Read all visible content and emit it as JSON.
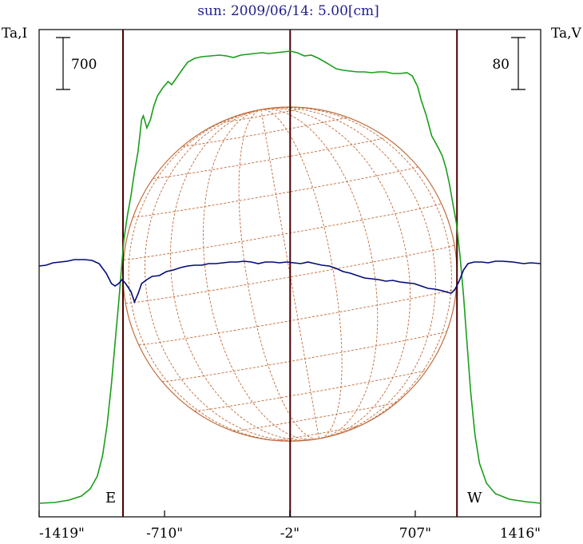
{
  "chart_data": {
    "type": "line",
    "title": "sun: 2009/06/14: 5.00[cm]",
    "title_color": "#1f1f8f",
    "left_axis_label": "Ta,I",
    "right_axis_label": "Ta,V",
    "left_scale_bar": "700",
    "right_scale_bar": "80",
    "x_ticks": [
      "-1419\"",
      "-710\"",
      "-2\"",
      "707\"",
      "1416\""
    ],
    "xlim": [
      -1419,
      1416
    ],
    "limb_labels": {
      "east": "E",
      "west": "W"
    },
    "limb_x": [
      -945,
      943
    ],
    "grid": false,
    "disk_overlay": true,
    "colors": {
      "stokes_i": "#1a9e1a",
      "stokes_v": "#000a78",
      "limb_lines": "#4a0000",
      "disk": "#c06b3a"
    },
    "series": [
      {
        "key": "stokes_i",
        "axis": "left",
        "points": [
          [
            -1419,
            630
          ],
          [
            -1330,
            629
          ],
          [
            -1250,
            626
          ],
          [
            -1180,
            621
          ],
          [
            -1130,
            612
          ],
          [
            -1090,
            596
          ],
          [
            -1060,
            570
          ],
          [
            -1035,
            532
          ],
          [
            -1010,
            480
          ],
          [
            -990,
            430
          ],
          [
            -970,
            380
          ],
          [
            -955,
            340
          ],
          [
            -940,
            300
          ],
          [
            -920,
            270
          ],
          [
            -900,
            245
          ],
          [
            -880,
            215
          ],
          [
            -860,
            190
          ],
          [
            -840,
            150
          ],
          [
            -830,
            145
          ],
          [
            -810,
            160
          ],
          [
            -790,
            150
          ],
          [
            -770,
            132
          ],
          [
            -750,
            120
          ],
          [
            -720,
            110
          ],
          [
            -690,
            102
          ],
          [
            -670,
            106
          ],
          [
            -650,
            100
          ],
          [
            -610,
            87
          ],
          [
            -580,
            78
          ],
          [
            -540,
            73
          ],
          [
            -500,
            71
          ],
          [
            -450,
            70
          ],
          [
            -400,
            69
          ],
          [
            -360,
            70
          ],
          [
            -320,
            72
          ],
          [
            -280,
            69
          ],
          [
            -240,
            68
          ],
          [
            -200,
            67
          ],
          [
            -160,
            66
          ],
          [
            -120,
            67
          ],
          [
            -80,
            66
          ],
          [
            -40,
            65
          ],
          [
            0,
            64
          ],
          [
            40,
            66
          ],
          [
            80,
            70
          ],
          [
            120,
            69
          ],
          [
            160,
            73
          ],
          [
            200,
            78
          ],
          [
            230,
            82
          ],
          [
            260,
            86
          ],
          [
            300,
            88
          ],
          [
            340,
            89
          ],
          [
            380,
            90
          ],
          [
            420,
            90
          ],
          [
            460,
            91
          ],
          [
            500,
            90
          ],
          [
            540,
            90
          ],
          [
            580,
            92
          ],
          [
            620,
            92
          ],
          [
            660,
            91
          ],
          [
            690,
            95
          ],
          [
            720,
            108
          ],
          [
            740,
            125
          ],
          [
            770,
            145
          ],
          [
            800,
            170
          ],
          [
            830,
            182
          ],
          [
            860,
            195
          ],
          [
            880,
            210
          ],
          [
            900,
            230
          ],
          [
            920,
            255
          ],
          [
            940,
            280
          ],
          [
            960,
            320
          ],
          [
            980,
            370
          ],
          [
            1000,
            430
          ],
          [
            1020,
            490
          ],
          [
            1045,
            545
          ],
          [
            1070,
            580
          ],
          [
            1110,
            605
          ],
          [
            1160,
            618
          ],
          [
            1240,
            625
          ],
          [
            1330,
            628
          ],
          [
            1416,
            630
          ]
        ]
      },
      {
        "key": "stokes_v",
        "axis": "right",
        "points": [
          [
            -1419,
            333
          ],
          [
            -1380,
            332
          ],
          [
            -1340,
            329
          ],
          [
            -1300,
            328
          ],
          [
            -1260,
            327
          ],
          [
            -1220,
            325
          ],
          [
            -1160,
            325
          ],
          [
            -1120,
            326
          ],
          [
            -1080,
            330
          ],
          [
            -1040,
            342
          ],
          [
            -1010,
            355
          ],
          [
            -990,
            358
          ],
          [
            -970,
            355
          ],
          [
            -950,
            350
          ],
          [
            -930,
            355
          ],
          [
            -900,
            365
          ],
          [
            -880,
            378
          ],
          [
            -860,
            368
          ],
          [
            -840,
            355
          ],
          [
            -810,
            350
          ],
          [
            -780,
            346
          ],
          [
            -740,
            345
          ],
          [
            -700,
            340
          ],
          [
            -660,
            338
          ],
          [
            -620,
            335
          ],
          [
            -580,
            333
          ],
          [
            -540,
            332
          ],
          [
            -500,
            332
          ],
          [
            -460,
            330
          ],
          [
            -420,
            330
          ],
          [
            -380,
            329
          ],
          [
            -340,
            328
          ],
          [
            -300,
            328
          ],
          [
            -260,
            327
          ],
          [
            -220,
            328
          ],
          [
            -180,
            330
          ],
          [
            -140,
            328
          ],
          [
            -100,
            328
          ],
          [
            -60,
            329
          ],
          [
            -20,
            328
          ],
          [
            20,
            329
          ],
          [
            60,
            330
          ],
          [
            100,
            328
          ],
          [
            140,
            330
          ],
          [
            180,
            332
          ],
          [
            220,
            333
          ],
          [
            260,
            336
          ],
          [
            300,
            340
          ],
          [
            340,
            342
          ],
          [
            380,
            345
          ],
          [
            420,
            348
          ],
          [
            460,
            349
          ],
          [
            500,
            350
          ],
          [
            540,
            352
          ],
          [
            580,
            351
          ],
          [
            620,
            353
          ],
          [
            660,
            354
          ],
          [
            700,
            355
          ],
          [
            740,
            358
          ],
          [
            780,
            361
          ],
          [
            820,
            362
          ],
          [
            860,
            364
          ],
          [
            890,
            366
          ],
          [
            910,
            367
          ],
          [
            930,
            363
          ],
          [
            955,
            352
          ],
          [
            980,
            338
          ],
          [
            1005,
            330
          ],
          [
            1040,
            328
          ],
          [
            1080,
            328
          ],
          [
            1120,
            329
          ],
          [
            1160,
            327
          ],
          [
            1200,
            327
          ],
          [
            1260,
            328
          ],
          [
            1320,
            330
          ],
          [
            1360,
            329
          ],
          [
            1416,
            330
          ]
        ]
      }
    ]
  }
}
